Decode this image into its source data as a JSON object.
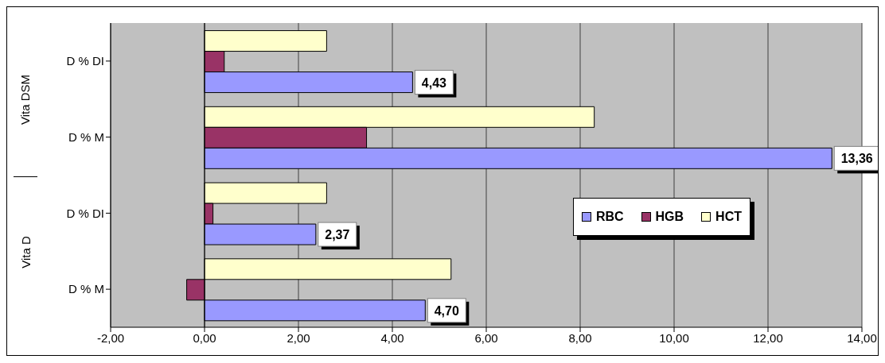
{
  "chart_data": {
    "type": "bar",
    "orientation": "horizontal",
    "categories": [
      "D % DI",
      "D % M",
      "D % DI",
      "D % M"
    ],
    "annotations": [
      "Vita DSM",
      "Vita D"
    ],
    "series": [
      {
        "name": "RBC",
        "color": "#9999ff",
        "values": [
          4.43,
          13.36,
          2.37,
          4.7
        ],
        "value_labels": [
          "4,43",
          "13,36",
          "2,37",
          "4,70"
        ]
      },
      {
        "name": "HGB",
        "color": "#993366",
        "values": [
          0.42,
          3.45,
          0.18,
          -0.38
        ]
      },
      {
        "name": "HCT",
        "color": "#ffffcc",
        "values": [
          2.6,
          8.3,
          2.6,
          5.25
        ]
      }
    ],
    "xlim": [
      -2,
      14
    ],
    "xticks": [
      {
        "value": -2,
        "label": "-2,00"
      },
      {
        "value": 0,
        "label": "0,00"
      },
      {
        "value": 2,
        "label": "2,00"
      },
      {
        "value": 4,
        "label": "4,00"
      },
      {
        "value": 6,
        "label": "6,00"
      },
      {
        "value": 8,
        "label": "8,00"
      },
      {
        "value": 10,
        "label": "10,00"
      },
      {
        "value": 12,
        "label": "12,00"
      },
      {
        "value": 14,
        "label": "14,00"
      }
    ],
    "grid": "x",
    "legend": "right"
  }
}
